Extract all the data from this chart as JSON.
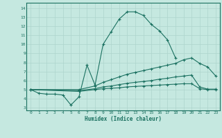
{
  "bg_color": "#c5e8e0",
  "line_color": "#1a7060",
  "grid_color": "#aed4cc",
  "xlabel": "Humidex (Indice chaleur)",
  "xlim": [
    -0.5,
    23.5
  ],
  "ylim": [
    2.7,
    14.6
  ],
  "yticks": [
    3,
    4,
    5,
    6,
    7,
    8,
    9,
    10,
    11,
    12,
    13,
    14
  ],
  "xticks": [
    0,
    1,
    2,
    3,
    4,
    5,
    6,
    7,
    8,
    9,
    10,
    11,
    12,
    13,
    14,
    15,
    16,
    17,
    18,
    19,
    20,
    21,
    22,
    23
  ],
  "lines": [
    {
      "x": [
        0,
        1,
        2,
        3,
        4,
        5,
        6,
        7,
        8,
        9,
        10,
        11,
        12,
        13,
        14,
        15,
        16,
        17,
        18
      ],
      "y": [
        5.0,
        4.6,
        4.5,
        4.5,
        4.4,
        3.3,
        4.2,
        7.7,
        5.5,
        10.0,
        11.4,
        12.8,
        13.6,
        13.6,
        13.2,
        12.2,
        11.5,
        10.5,
        8.5
      ]
    },
    {
      "x": [
        0,
        6,
        8,
        9,
        10,
        11,
        12,
        13,
        14,
        15,
        16,
        17,
        18,
        19,
        20,
        21,
        22,
        23
      ],
      "y": [
        5.0,
        5.0,
        5.4,
        5.8,
        6.1,
        6.4,
        6.7,
        6.9,
        7.1,
        7.3,
        7.5,
        7.7,
        7.9,
        8.3,
        8.5,
        7.9,
        7.5,
        6.5
      ]
    },
    {
      "x": [
        0,
        6,
        8,
        9,
        10,
        11,
        12,
        13,
        14,
        15,
        16,
        17,
        18,
        19,
        20,
        21,
        22,
        23
      ],
      "y": [
        5.0,
        4.9,
        5.1,
        5.3,
        5.4,
        5.55,
        5.7,
        5.8,
        5.9,
        6.0,
        6.15,
        6.25,
        6.4,
        6.5,
        6.6,
        5.3,
        5.05,
        5.05
      ]
    },
    {
      "x": [
        0,
        6,
        8,
        9,
        10,
        11,
        12,
        13,
        14,
        15,
        16,
        17,
        18,
        19,
        20,
        21,
        22,
        23
      ],
      "y": [
        5.0,
        4.8,
        5.0,
        5.1,
        5.15,
        5.2,
        5.3,
        5.35,
        5.4,
        5.45,
        5.5,
        5.55,
        5.6,
        5.65,
        5.65,
        5.1,
        5.0,
        5.0
      ]
    }
  ]
}
